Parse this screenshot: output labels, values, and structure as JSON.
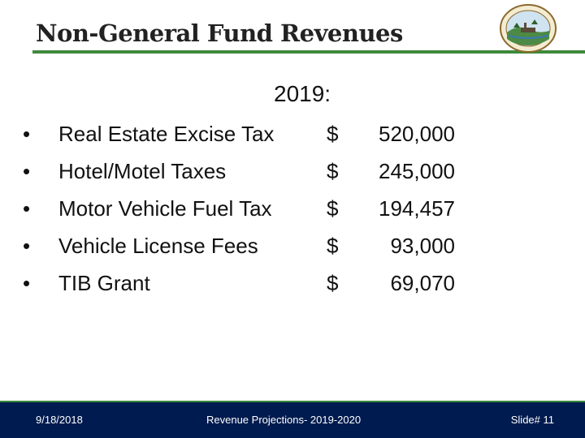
{
  "header": {
    "title": "Non-General Fund Revenues",
    "logo_icon": "city-seal-icon",
    "accent_color": "#3f8a3c"
  },
  "body": {
    "year_label": "2019:",
    "bullet": "•",
    "currency": "$",
    "items": [
      {
        "label": "Real Estate Excise Tax",
        "amount": "520,000"
      },
      {
        "label": "Hotel/Motel Taxes",
        "amount": "245,000"
      },
      {
        "label": "Motor Vehicle Fuel Tax",
        "amount": "194,457"
      },
      {
        "label": "Vehicle License Fees",
        "amount": "93,000"
      },
      {
        "label": "TIB Grant",
        "amount": "69,070"
      }
    ]
  },
  "footer": {
    "date": "9/18/2018",
    "center_text": "Revenue Projections- 2019-2020",
    "slide_label": "Slide# 11",
    "background_color": "#001b4f"
  }
}
